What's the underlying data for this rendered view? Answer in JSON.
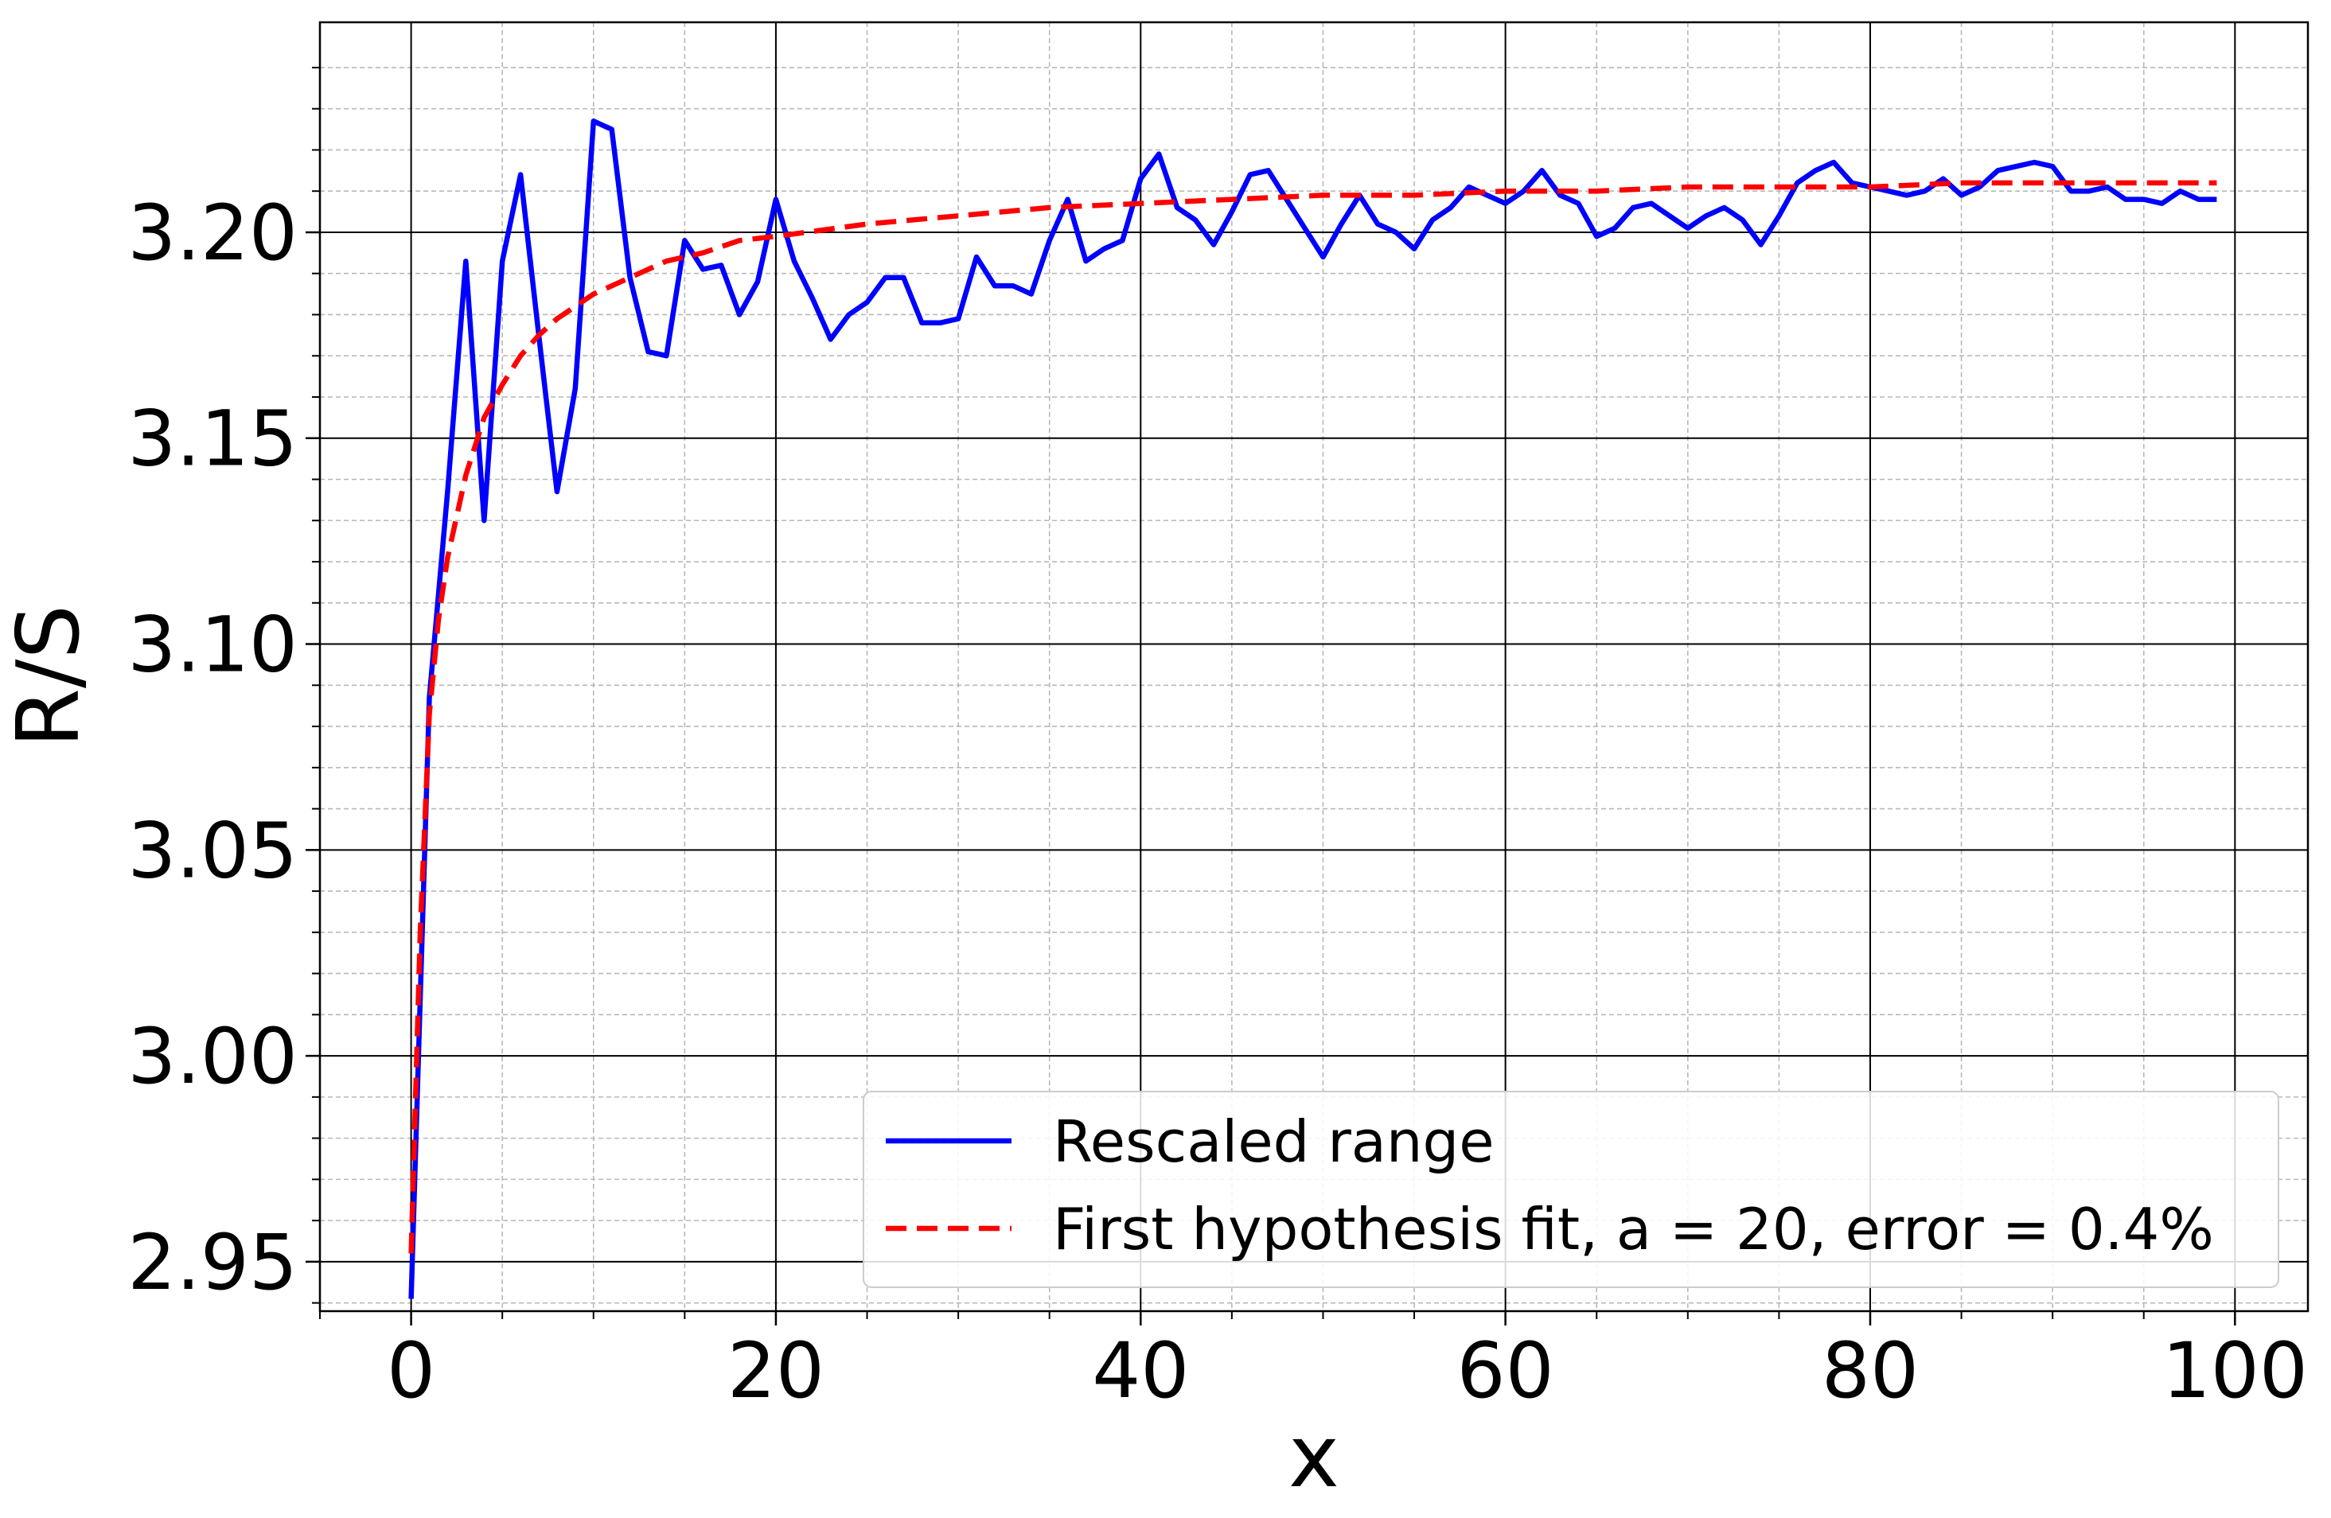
{
  "chart_data": {
    "type": "line",
    "title": "",
    "xlabel": "x",
    "ylabel": "R/S",
    "xlim": [
      -5,
      104
    ],
    "ylim": [
      2.938,
      3.251
    ],
    "grid": {
      "major": true,
      "minor": true
    },
    "legend": "bottom-right",
    "x_ticks": [
      0,
      20,
      40,
      60,
      80,
      100
    ],
    "x_tick_labels": [
      "0",
      "20",
      "40",
      "60",
      "80",
      "100"
    ],
    "y_ticks": [
      2.95,
      3.0,
      3.05,
      3.1,
      3.15,
      3.2
    ],
    "y_tick_labels": [
      "2.95",
      "3.00",
      "3.05",
      "3.10",
      "3.15",
      "3.20"
    ],
    "series": [
      {
        "name": "Rescaled range",
        "color": "#0000ff",
        "style": "solid",
        "x": [
          0,
          1,
          2,
          3,
          4,
          5,
          6,
          7,
          8,
          9,
          10,
          11,
          12,
          13,
          14,
          15,
          16,
          17,
          18,
          19,
          20,
          21,
          22,
          23,
          24,
          25,
          26,
          27,
          28,
          29,
          30,
          31,
          32,
          33,
          34,
          35,
          36,
          37,
          38,
          39,
          40,
          41,
          42,
          43,
          44,
          45,
          46,
          47,
          48,
          49,
          50,
          51,
          52,
          53,
          54,
          55,
          56,
          57,
          58,
          59,
          60,
          61,
          62,
          63,
          64,
          65,
          66,
          67,
          68,
          69,
          70,
          71,
          72,
          73,
          74,
          75,
          76,
          77,
          78,
          79,
          80,
          81,
          82,
          83,
          84,
          85,
          86,
          87,
          88,
          89,
          90,
          91,
          92,
          93,
          94,
          95,
          96,
          97,
          98,
          99
        ],
        "values": [
          2.941,
          3.087,
          3.137,
          3.193,
          3.13,
          3.193,
          3.214,
          3.175,
          3.137,
          3.162,
          3.227,
          3.225,
          3.189,
          3.171,
          3.17,
          3.198,
          3.191,
          3.192,
          3.18,
          3.188,
          3.208,
          3.193,
          3.184,
          3.174,
          3.18,
          3.183,
          3.189,
          3.189,
          3.178,
          3.178,
          3.179,
          3.194,
          3.187,
          3.187,
          3.185,
          3.198,
          3.208,
          3.193,
          3.196,
          3.198,
          3.213,
          3.219,
          3.206,
          3.203,
          3.197,
          3.205,
          3.214,
          3.215,
          3.208,
          3.201,
          3.194,
          3.202,
          3.209,
          3.202,
          3.2,
          3.196,
          3.203,
          3.206,
          3.211,
          3.209,
          3.207,
          3.21,
          3.215,
          3.209,
          3.207,
          3.199,
          3.201,
          3.206,
          3.207,
          3.204,
          3.201,
          3.204,
          3.206,
          3.203,
          3.197,
          3.204,
          3.212,
          3.215,
          3.217,
          3.212,
          3.211,
          3.21,
          3.209,
          3.21,
          3.213,
          3.209,
          3.211,
          3.215,
          3.216,
          3.217,
          3.216,
          3.21,
          3.21,
          3.211,
          3.208,
          3.208,
          3.207,
          3.21,
          3.208,
          3.208
        ]
      },
      {
        "name": "First hypothesis fit, a = 20, error = 0.4%",
        "color": "#ff0000",
        "style": "dashed",
        "x": [
          0,
          0.5,
          1,
          1.5,
          2,
          3,
          4,
          5,
          6,
          7,
          8,
          9,
          10,
          12,
          14,
          16,
          18,
          20,
          25,
          30,
          35,
          40,
          45,
          50,
          55,
          60,
          65,
          70,
          75,
          80,
          85,
          90,
          95,
          99
        ],
        "values": [
          2.952,
          3.03,
          3.083,
          3.106,
          3.121,
          3.141,
          3.155,
          3.163,
          3.17,
          3.175,
          3.179,
          3.182,
          3.185,
          3.189,
          3.193,
          3.195,
          3.198,
          3.199,
          3.202,
          3.204,
          3.206,
          3.207,
          3.208,
          3.209,
          3.209,
          3.21,
          3.21,
          3.211,
          3.211,
          3.211,
          3.212,
          3.212,
          3.212,
          3.212
        ]
      }
    ]
  }
}
